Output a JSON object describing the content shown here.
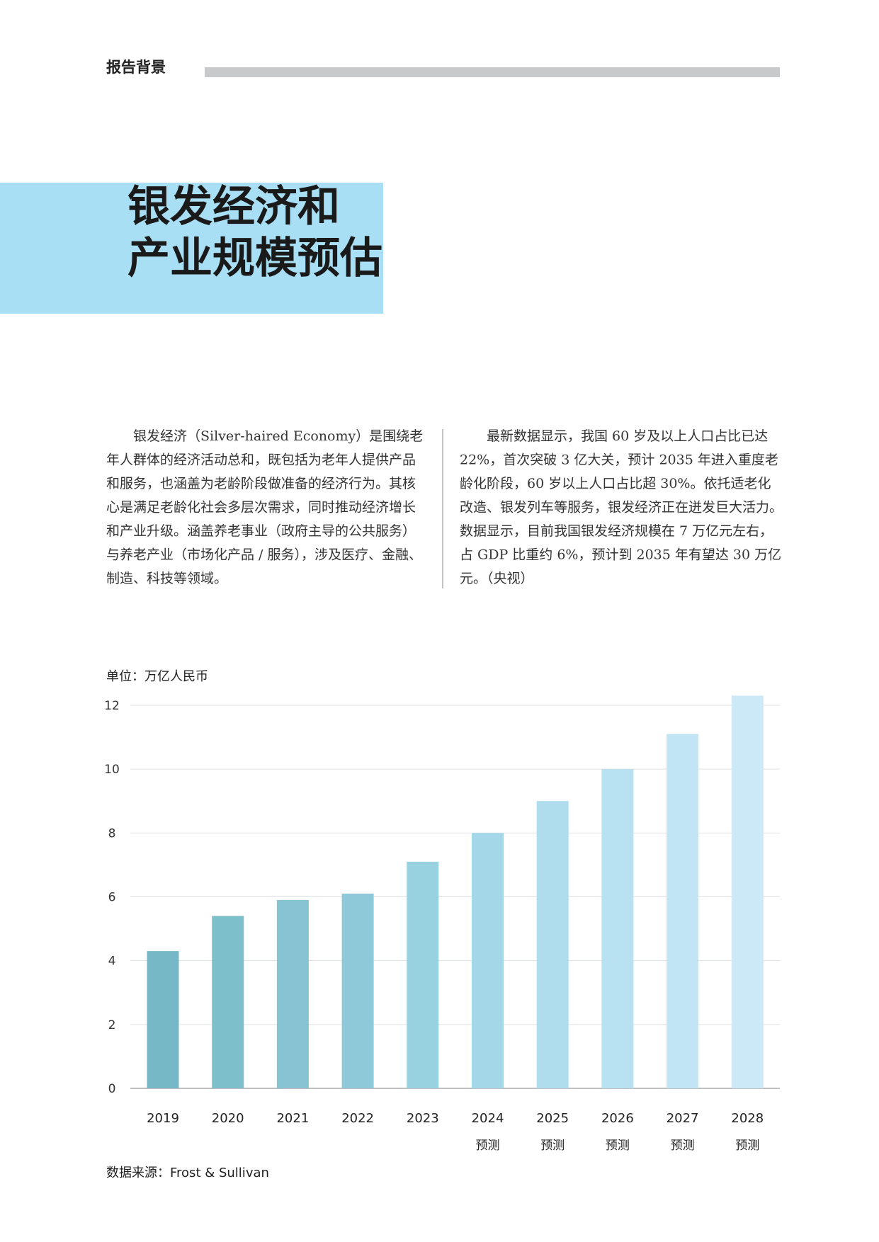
{
  "header": {
    "section": "报告背景"
  },
  "title": [
    "银发经济和",
    "产业规模预估"
  ],
  "paragraphs": [
    [
      "银发经济（Silver-haired Economy）是围绕老",
      "年人群体的经济活动总和，既包括为老年人提供产品",
      "和服务，也涵盖为老龄阶段做准备的经济行为。其核",
      "心是满足老龄化社会多层次需求，同时推动经济增长",
      "和产业升级。涵盖养老事业（政府主导的公共服务）",
      "与养老产业（市场化产品 / 服务），涉及医疗、金融、",
      "制造、科技等领域。"
    ],
    [
      "最新数据显示，我国 60 岁及以上人口占比已达",
      "22%，首次突破 3 亿大关，预计 2035 年进入重度老",
      "龄化阶段，60 岁以上人口占比超 30%。依托适老化",
      "改造、银发列车等服务，银发经济正在迸发巨大活力。",
      "数据显示，目前我国银发经济规模在 7 万亿元左右，",
      "占 GDP 比重约 6%，预计到 2035 年有望达 30 万亿",
      "元。（央视）"
    ]
  ],
  "chart_data": {
    "type": "bar",
    "unit_label": "单位：万亿人民币",
    "source": "数据来源：Frost & Sullivan",
    "categories": [
      "2019",
      "2020",
      "2021",
      "2022",
      "2023",
      "2024",
      "2025",
      "2026",
      "2027",
      "2028"
    ],
    "category_notes": [
      null,
      null,
      null,
      null,
      null,
      "预测",
      "预测",
      "预测",
      "预测",
      "预测"
    ],
    "values": [
      4.3,
      5.4,
      5.9,
      6.1,
      7.1,
      8.0,
      9.0,
      10.0,
      11.1,
      12.3
    ],
    "colors": [
      "#76b8c6",
      "#7ebfcc",
      "#86c4d3",
      "#8dc9d8",
      "#98d1e0",
      "#a4d7e7",
      "#afddee",
      "#b8e1f2",
      "#c2e5f6",
      "#cce9f8"
    ],
    "ylim": [
      0,
      12
    ],
    "yticks": [
      0,
      2,
      4,
      6,
      8,
      10,
      12
    ],
    "grid": true
  }
}
